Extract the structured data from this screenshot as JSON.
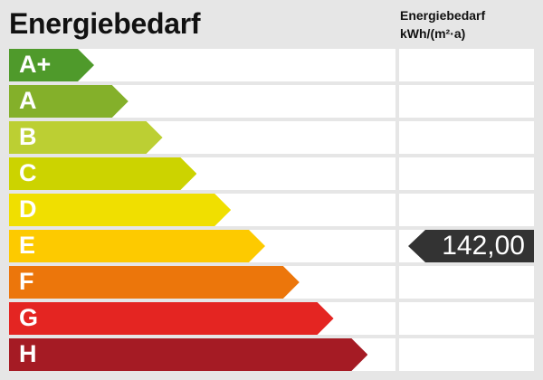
{
  "title": "Energiebedarf",
  "column_header": {
    "line1": "Energiebedarf",
    "line2": "kWh/(m²·a)"
  },
  "classes": [
    {
      "label": "A+",
      "color": "#4f9a2b"
    },
    {
      "label": "A",
      "color": "#84b02a"
    },
    {
      "label": "B",
      "color": "#bccf33"
    },
    {
      "label": "C",
      "color": "#ccd300"
    },
    {
      "label": "D",
      "color": "#f0df00"
    },
    {
      "label": "E",
      "color": "#fdca00"
    },
    {
      "label": "F",
      "color": "#ec760b"
    },
    {
      "label": "G",
      "color": "#e42522"
    },
    {
      "label": "H",
      "color": "#a51b24"
    }
  ],
  "indicator": {
    "class": "E",
    "value": "142,00",
    "color": "#333333"
  }
}
